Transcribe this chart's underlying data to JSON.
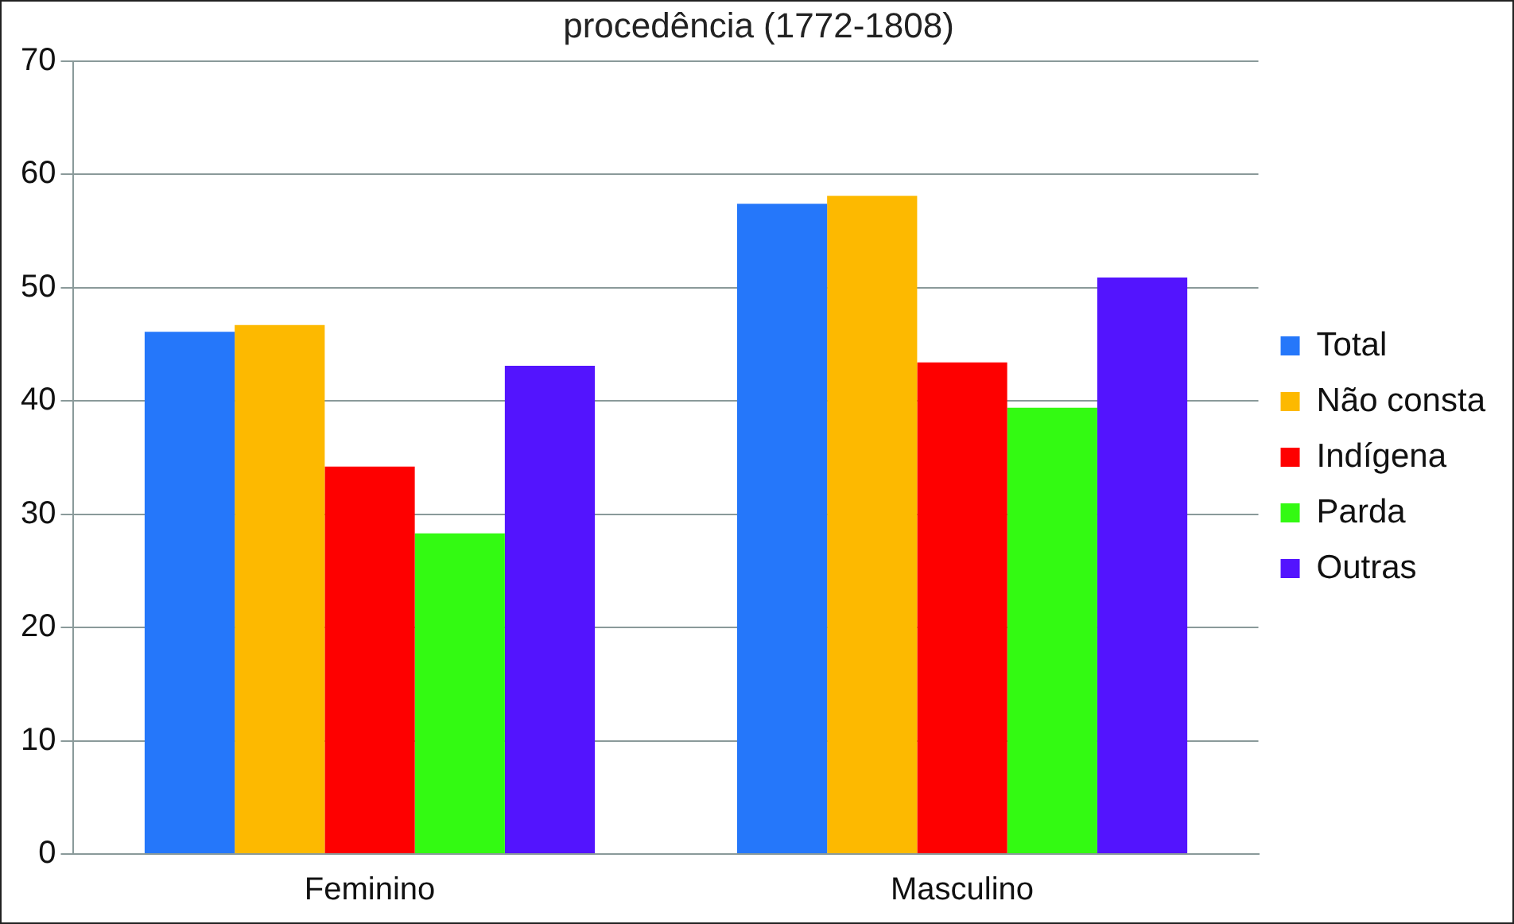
{
  "chart_data": {
    "type": "bar",
    "title": "procedência (1772-1808)",
    "categories": [
      "Feminino",
      "Masculino"
    ],
    "series": [
      {
        "name": "Total",
        "color": "#2577fa",
        "values": [
          46.1,
          57.4
        ]
      },
      {
        "name": "Não consta",
        "color": "#fdb900",
        "values": [
          46.7,
          58.1
        ]
      },
      {
        "name": "Indígena",
        "color": "#fe0000",
        "values": [
          34.2,
          43.4
        ]
      },
      {
        "name": "Parda",
        "color": "#33fa12",
        "values": [
          28.3,
          39.4
        ]
      },
      {
        "name": "Outras",
        "color": "#5314fe",
        "values": [
          43.1,
          50.9
        ]
      }
    ],
    "ylim": [
      0,
      70
    ],
    "yticks": [
      0,
      10,
      20,
      30,
      40,
      50,
      60,
      70
    ],
    "grid": "y",
    "legend": "right"
  }
}
